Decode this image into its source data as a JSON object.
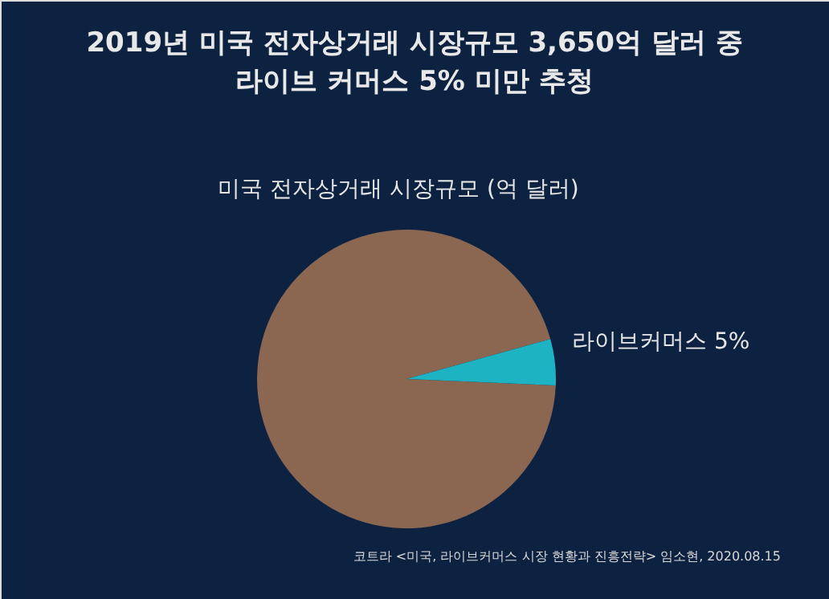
{
  "chart_data": {
    "type": "pie",
    "title": [
      "2019년 미국 전자상거래 시장규모 3,650억 달러 중",
      "라이브 커머스 5% 미만 추청"
    ],
    "categories": [
      "미국 전자상거래 시장규모 (억 달러)",
      "라이브커머스 5%"
    ],
    "values": [
      95,
      5
    ],
    "colors": [
      "#8b6651",
      "#1db3c2"
    ],
    "annotations": [
      "코트라 <미국, 라이브커머스  시장 현황과 진흥전략> 임소현, 2020.08.15"
    ]
  }
}
